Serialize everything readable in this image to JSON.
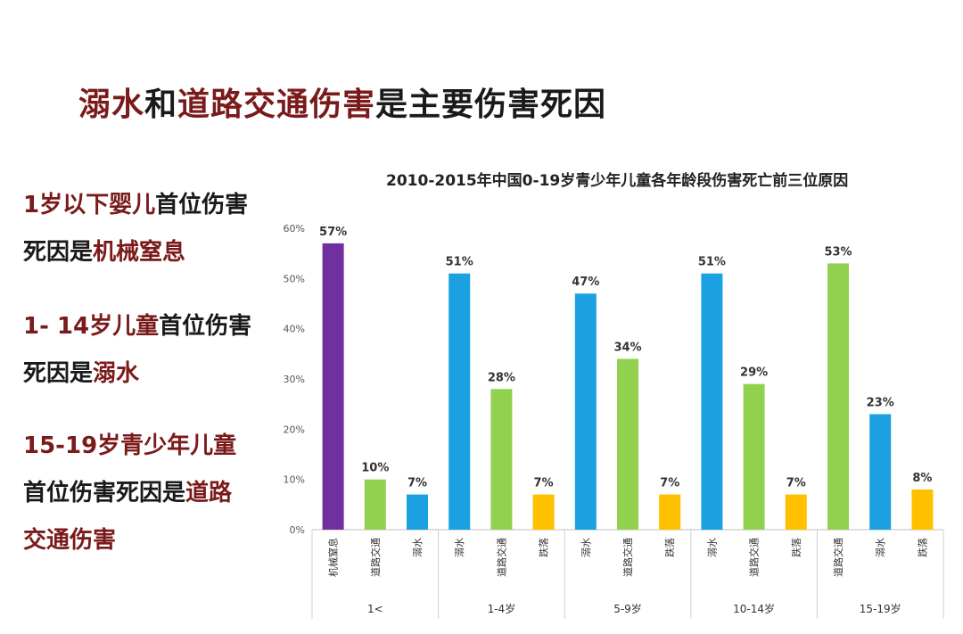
{
  "slide_title": [
    {
      "text": "溺水",
      "color": "#7a1a1a"
    },
    {
      "text": "和",
      "color": "#1a1a1a"
    },
    {
      "text": "道路交通伤害",
      "color": "#7a1a1a"
    },
    {
      "text": "是主要伤害死因",
      "color": "#1a1a1a"
    }
  ],
  "side_notes": {
    "infant": [
      "1岁以下婴儿",
      "首位伤害死因是",
      "机械窒息"
    ],
    "child": [
      "1- 14岁儿童",
      "首位伤害死因是",
      "溺水"
    ],
    "teen": [
      "15-19岁青少年儿童",
      "首位伤害死因是",
      "道路交通伤害"
    ]
  },
  "colors": {
    "emphasis": "#7a1a1a",
    "mechanical_suffocation": "#7030a0",
    "road_traffic": "#92d050",
    "drowning": "#1ba1e2",
    "fall": "#ffc000"
  },
  "chart_data": {
    "type": "bar",
    "title": "2010-2015年中国0-19岁青少年儿童各年龄段伤害死亡前三位原因",
    "ylim": [
      0,
      60
    ],
    "yticks": [
      "0%",
      "10%",
      "20%",
      "30%",
      "40%",
      "50%",
      "60%"
    ],
    "grid": false,
    "legend": "none",
    "groups": [
      {
        "label": "1<",
        "bars": [
          {
            "cause": "机械窒息",
            "value": 57,
            "label": "57%",
            "color": "#7030a0"
          },
          {
            "cause": "道路交通",
            "value": 10,
            "label": "10%",
            "color": "#92d050"
          },
          {
            "cause": "溺水",
            "value": 7,
            "label": "7%",
            "color": "#1ba1e2"
          }
        ]
      },
      {
        "label": "1-4岁",
        "bars": [
          {
            "cause": "溺水",
            "value": 51,
            "label": "51%",
            "color": "#1ba1e2"
          },
          {
            "cause": "道路交通",
            "value": 28,
            "label": "28%",
            "color": "#92d050"
          },
          {
            "cause": "跌落",
            "value": 7,
            "label": "7%",
            "color": "#ffc000"
          }
        ]
      },
      {
        "label": "5-9岁",
        "bars": [
          {
            "cause": "溺水",
            "value": 47,
            "label": "47%",
            "color": "#1ba1e2"
          },
          {
            "cause": "道路交通",
            "value": 34,
            "label": "34%",
            "color": "#92d050"
          },
          {
            "cause": "跌落",
            "value": 7,
            "label": "7%",
            "color": "#ffc000"
          }
        ]
      },
      {
        "label": "10-14岁",
        "bars": [
          {
            "cause": "溺水",
            "value": 51,
            "label": "51%",
            "color": "#1ba1e2"
          },
          {
            "cause": "道路交通",
            "value": 29,
            "label": "29%",
            "color": "#92d050"
          },
          {
            "cause": "跌落",
            "value": 7,
            "label": "7%",
            "color": "#ffc000"
          }
        ]
      },
      {
        "label": "15-19岁",
        "bars": [
          {
            "cause": "道路交通",
            "value": 53,
            "label": "53%",
            "color": "#92d050"
          },
          {
            "cause": "溺水",
            "value": 23,
            "label": "23%",
            "color": "#1ba1e2"
          },
          {
            "cause": "跌落",
            "value": 8,
            "label": "8%",
            "color": "#ffc000"
          }
        ]
      }
    ]
  }
}
